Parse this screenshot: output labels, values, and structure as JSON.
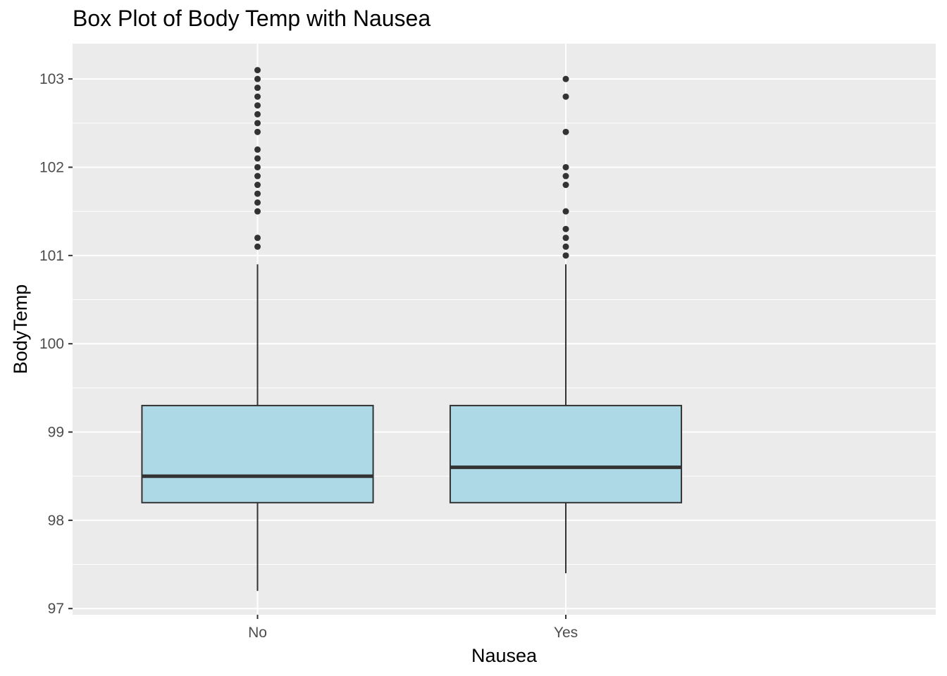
{
  "chart_data": {
    "type": "box",
    "title": "Box Plot of Body Temp with Nausea",
    "xlabel": "Nausea",
    "ylabel": "BodyTemp",
    "categories": [
      "No",
      "Yes"
    ],
    "ylim": [
      96.93,
      103.4
    ],
    "yticks": [
      97,
      98,
      99,
      100,
      101,
      102,
      103
    ],
    "grid": true,
    "colors": {
      "panel": "#EBEBEB",
      "grid": "#FFFFFF",
      "box_fill": "#ADD8E6",
      "box_stroke": "#333333",
      "outlier": "#333333",
      "tick_text": "#4D4D4D"
    },
    "boxes": [
      {
        "category": "No",
        "q1": 98.2,
        "median": 98.5,
        "q3": 99.3,
        "whisker_low": 97.2,
        "whisker_high": 100.9,
        "outliers": [
          101.1,
          101.2,
          101.5,
          101.6,
          101.7,
          101.8,
          101.9,
          102.0,
          102.1,
          102.2,
          102.4,
          102.5,
          102.6,
          102.7,
          102.8,
          102.9,
          103.0,
          103.1
        ]
      },
      {
        "category": "Yes",
        "q1": 98.2,
        "median": 98.6,
        "q3": 99.3,
        "whisker_low": 97.4,
        "whisker_high": 100.9,
        "outliers": [
          101.0,
          101.1,
          101.2,
          101.3,
          101.5,
          101.8,
          101.9,
          102.0,
          102.4,
          102.8,
          103.0
        ]
      }
    ]
  }
}
